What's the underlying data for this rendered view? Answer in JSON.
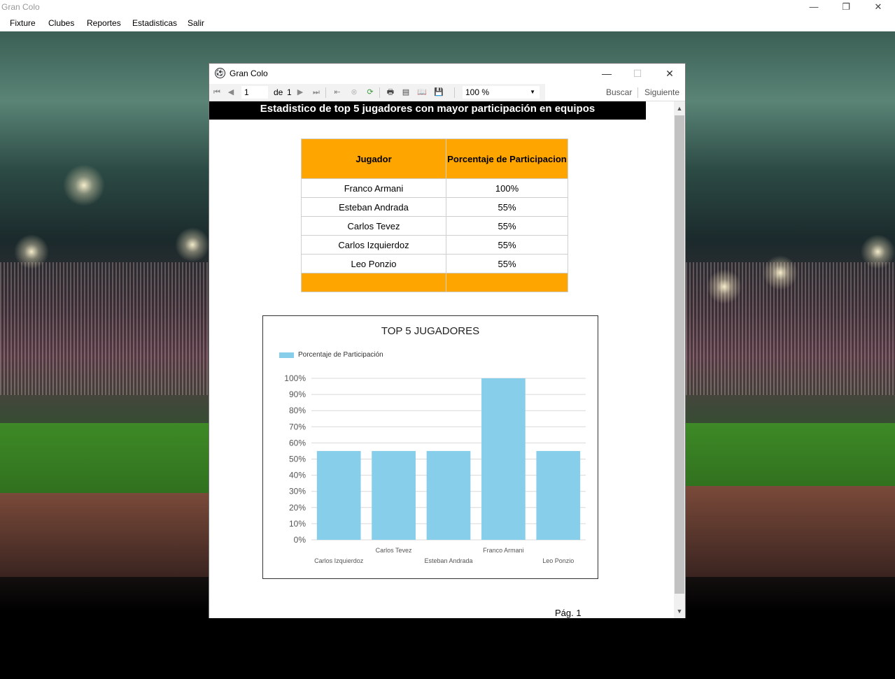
{
  "main_window": {
    "title": "Gran Colo",
    "controls": {
      "minimize": "—",
      "restore": "❐",
      "close": "✕"
    }
  },
  "menu": [
    "Fixture",
    "Clubes",
    "Reportes",
    "Estadisticas",
    "Salir"
  ],
  "dialog": {
    "title": "Gran Colo",
    "controls": {
      "minimize": "—",
      "maximize": "☐",
      "close": "✕"
    },
    "toolbar": {
      "page_current": "1",
      "page_of_label": "de",
      "page_total": "1",
      "zoom": "100 %",
      "find_label": "Buscar",
      "next_label": "Siguiente",
      "icons": [
        "first-page-icon",
        "prev-page-icon",
        "next-page-icon",
        "last-page-icon",
        "back-icon",
        "stop-icon",
        "refresh-icon",
        "print-icon",
        "print-layout-icon",
        "page-setup-icon",
        "export-icon"
      ]
    }
  },
  "report": {
    "header": "Estadistico de top 5 jugadores con mayor participación en equipos",
    "table": {
      "headers": [
        "Jugador",
        "Porcentaje de Participacion"
      ],
      "rows": [
        [
          "Franco Armani",
          "100%"
        ],
        [
          "Esteban Andrada",
          "55%"
        ],
        [
          "Carlos Tevez",
          "55%"
        ],
        [
          "Carlos Izquierdoz",
          "55%"
        ],
        [
          "Leo Ponzio",
          "55%"
        ]
      ]
    },
    "page_label": "Pág. 1"
  },
  "chart_data": {
    "type": "bar",
    "title": "TOP 5 JUGADORES",
    "categories": [
      "Carlos Izquierdoz",
      "Carlos Tevez",
      "Esteban Andrada",
      "Franco Armani",
      "Leo Ponzio"
    ],
    "series": [
      {
        "name": "Porcentaje de Participación",
        "values": [
          55,
          55,
          55,
          100,
          55
        ],
        "color": "#87ceeb"
      }
    ],
    "ylim": [
      0,
      100
    ],
    "yticks": [
      "0%",
      "10%",
      "20%",
      "30%",
      "40%",
      "50%",
      "60%",
      "70%",
      "80%",
      "90%",
      "100%"
    ],
    "grid": true,
    "legend": "top-left"
  }
}
